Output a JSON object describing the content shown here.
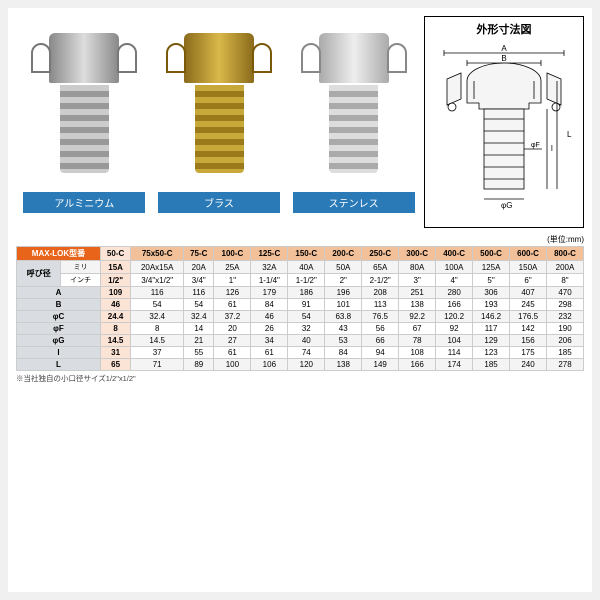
{
  "diagram": {
    "title": "外形寸法図",
    "labels": {
      "A": "A",
      "B": "B",
      "phiC": "φC",
      "L": "L",
      "l": "l",
      "phiF": "φF",
      "phiG": "φG"
    }
  },
  "products": [
    {
      "cls": "c-alum",
      "label": "アルミニウム"
    },
    {
      "cls": "c-brass",
      "label": "ブラス"
    },
    {
      "cls": "c-steel",
      "label": "ステンレス"
    }
  ],
  "unit_note": "(単位:mm)",
  "table": {
    "header_label": "MAX-LOK型番",
    "models": [
      "50-C",
      "75x50-C",
      "75-C",
      "100-C",
      "125-C",
      "150-C",
      "200-C",
      "250-C",
      "300-C",
      "400-C",
      "500-C",
      "600-C",
      "800-C"
    ],
    "size_label": "呼び径",
    "size_sub": [
      "ミリ",
      "インチ"
    ],
    "size_mm": [
      "15A",
      "20Ax15A",
      "20A",
      "25A",
      "32A",
      "40A",
      "50A",
      "65A",
      "80A",
      "100A",
      "125A",
      "150A",
      "200A"
    ],
    "size_in": [
      "1/2\"",
      "3/4\"x1/2\"",
      "3/4\"",
      "1\"",
      "1-1/4\"",
      "1-1/2\"",
      "2\"",
      "2-1/2\"",
      "3\"",
      "4\"",
      "5\"",
      "6\"",
      "8\""
    ],
    "rows": [
      {
        "label": "A",
        "vals": [
          "109",
          "116",
          "116",
          "126",
          "179",
          "186",
          "196",
          "208",
          "251",
          "280",
          "306",
          "407",
          "470"
        ]
      },
      {
        "label": "B",
        "vals": [
          "46",
          "54",
          "54",
          "61",
          "84",
          "91",
          "101",
          "113",
          "138",
          "166",
          "193",
          "245",
          "298"
        ]
      },
      {
        "label": "φC",
        "vals": [
          "24.4",
          "32.4",
          "32.4",
          "37.2",
          "46",
          "54",
          "63.8",
          "76.5",
          "92.2",
          "120.2",
          "146.2",
          "176.5",
          "232"
        ]
      },
      {
        "label": "φF",
        "vals": [
          "8",
          "8",
          "14",
          "20",
          "26",
          "32",
          "43",
          "56",
          "67",
          "92",
          "117",
          "142",
          "190"
        ]
      },
      {
        "label": "φG",
        "vals": [
          "14.5",
          "14.5",
          "21",
          "27",
          "34",
          "40",
          "53",
          "66",
          "78",
          "104",
          "129",
          "156",
          "206"
        ]
      },
      {
        "label": "l",
        "vals": [
          "31",
          "37",
          "55",
          "61",
          "61",
          "74",
          "84",
          "94",
          "108",
          "114",
          "123",
          "175",
          "185"
        ]
      },
      {
        "label": "L",
        "vals": [
          "65",
          "71",
          "89",
          "100",
          "106",
          "120",
          "138",
          "149",
          "166",
          "174",
          "185",
          "240",
          "278"
        ]
      }
    ]
  },
  "footnote": "※当社独自の小口径サイズ1/2\"x1/2\"",
  "colors": {
    "header_bg": "#e8641a",
    "subhdr_bg": "#f2c099",
    "label_bg": "#2a7ab8"
  }
}
